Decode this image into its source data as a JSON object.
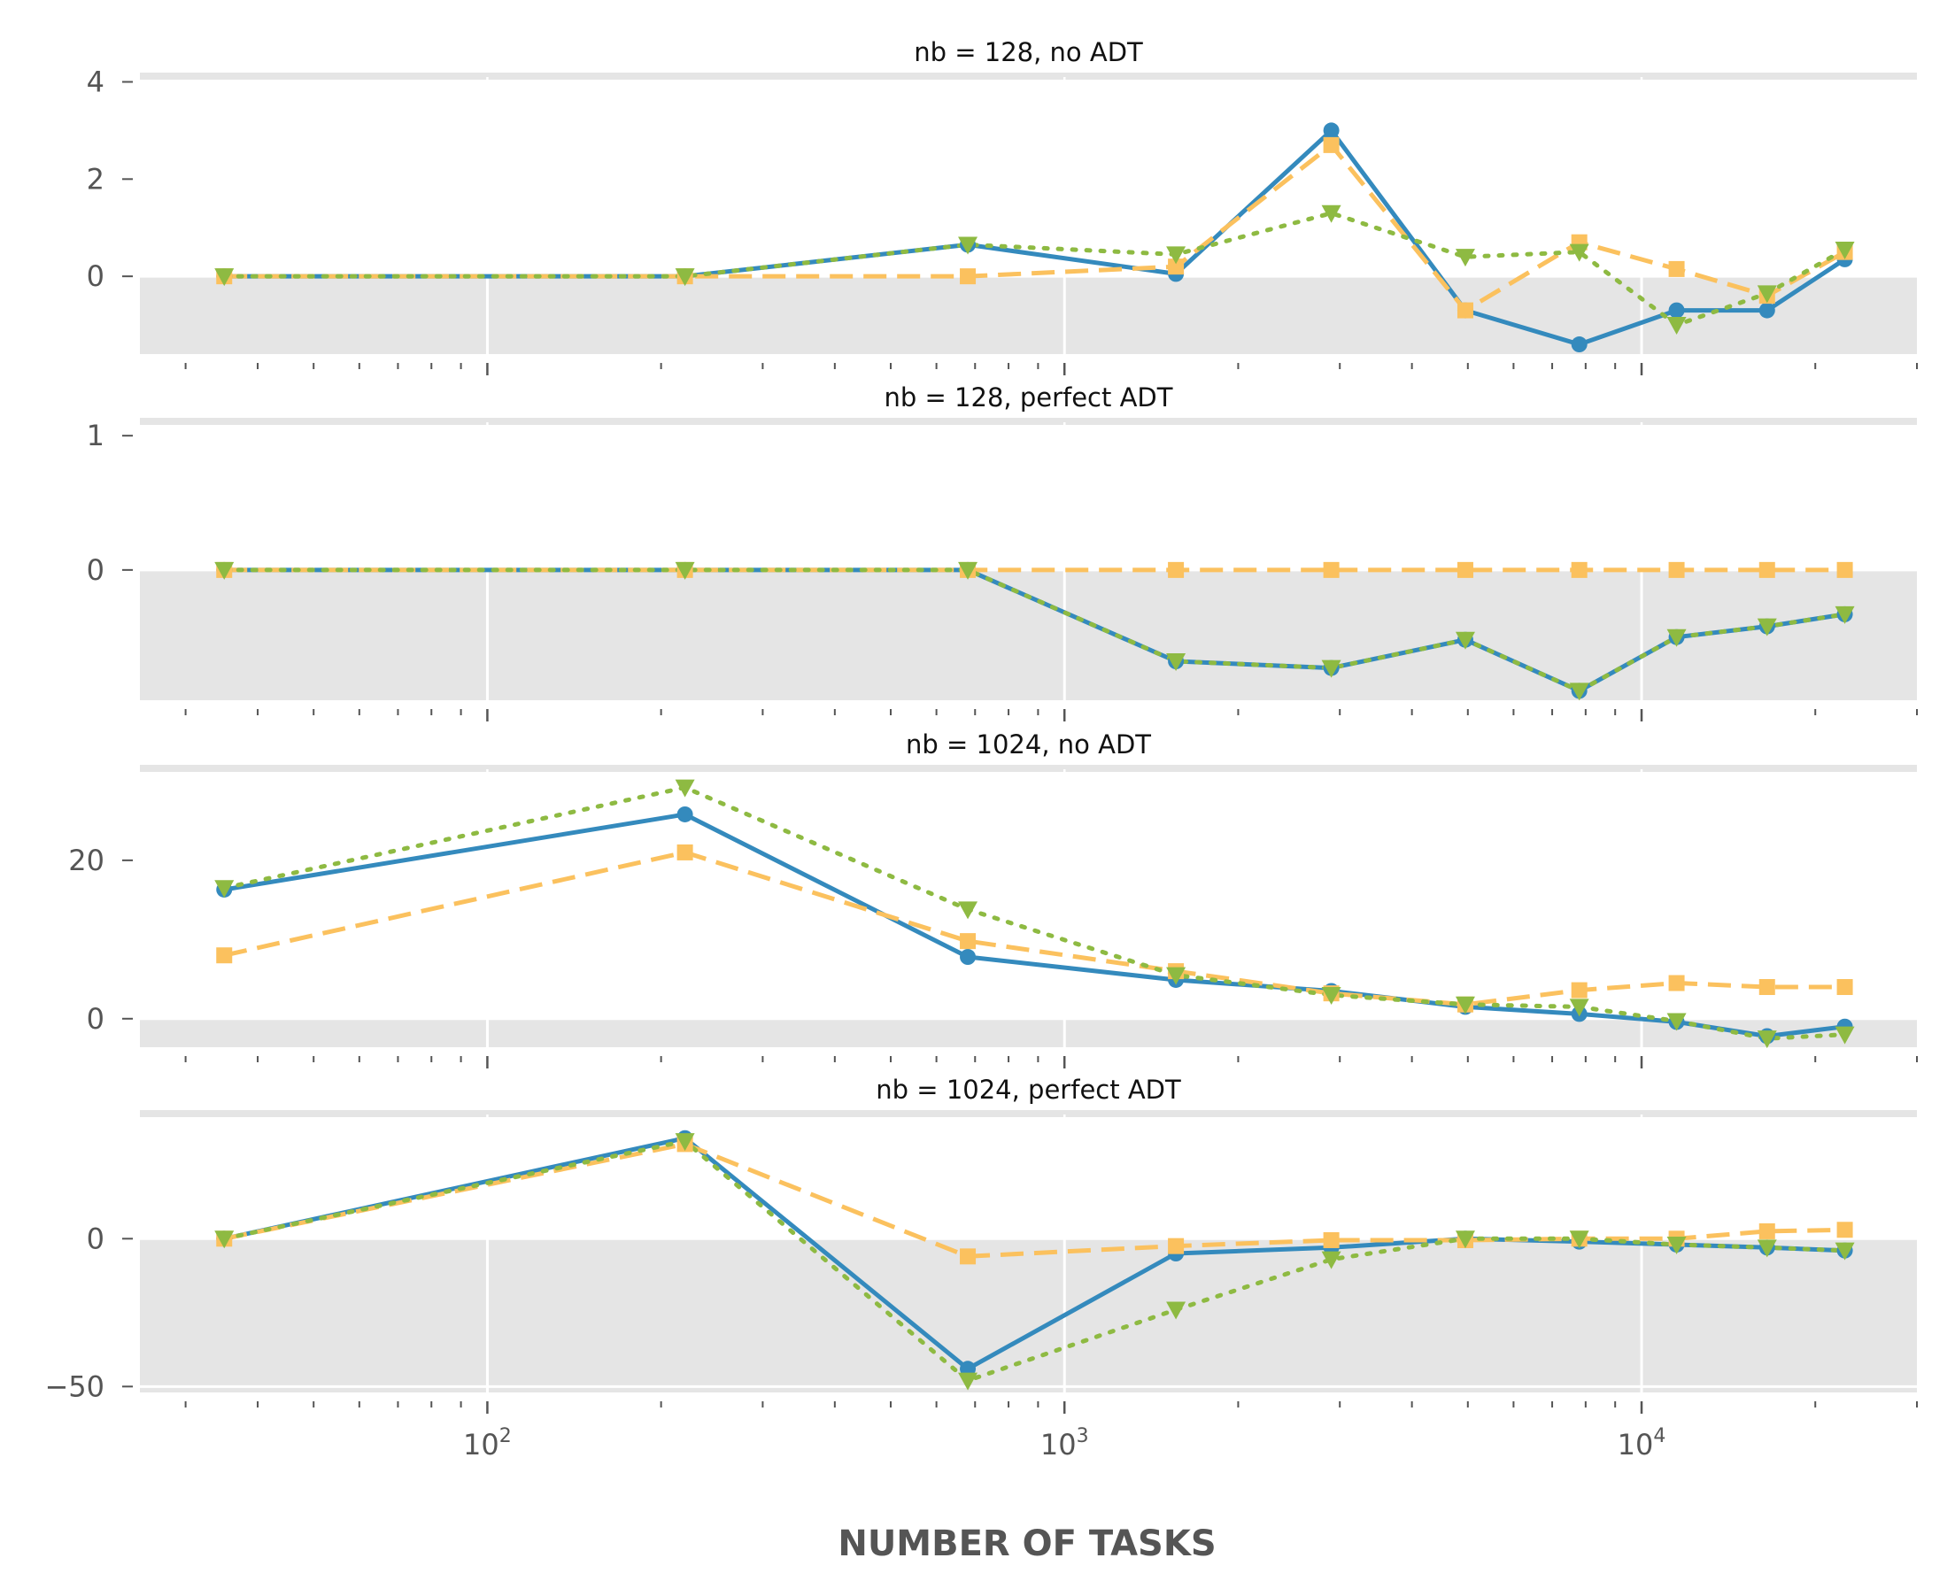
{
  "chart_data": {
    "type": "line",
    "xlabel": "NUMBER OF TASKS",
    "xscale": "log",
    "xlim": [
      25,
      30000
    ],
    "x_ticks": [
      100,
      1000,
      10000
    ],
    "x_tick_labels": [
      {
        "base": "10",
        "exp": "2"
      },
      {
        "base": "10",
        "exp": "3"
      },
      {
        "base": "10",
        "exp": "4"
      }
    ],
    "x": [
      35,
      220,
      680,
      1560,
      2900,
      4950,
      7800,
      11500,
      16500,
      22500
    ],
    "grid": true,
    "negative_region_shaded": true,
    "style": {
      "colors": {
        "blue": "#348ABD",
        "orange": "#FBC15E",
        "green": "#8EBA42",
        "grid": "#E5E5E5",
        "text": "#555555"
      }
    },
    "panels": [
      {
        "title": "nb = 128, no ADT",
        "ylim": [
          -1.6,
          4.1
        ],
        "y_ticks": [
          0,
          2,
          4
        ],
        "y_tick_labels": [
          "0",
          "2",
          "4"
        ],
        "series": [
          {
            "style": "solid",
            "marker": "circle",
            "color": "#348ABD",
            "values": [
              0,
              0,
              0.65,
              0.05,
              3.0,
              -0.7,
              -1.4,
              -0.7,
              -0.7,
              0.35
            ]
          },
          {
            "style": "dashed",
            "marker": "square",
            "color": "#FBC15E",
            "values": [
              0,
              0,
              0,
              0.2,
              2.7,
              -0.7,
              0.7,
              0.15,
              -0.4,
              0.5
            ]
          },
          {
            "style": "dotted",
            "marker": "triangle-down",
            "color": "#8EBA42",
            "values": [
              0,
              0,
              0.65,
              0.45,
              1.3,
              0.4,
              0.5,
              -1.0,
              -0.35,
              0.55
            ]
          }
        ]
      },
      {
        "title": "nb = 128, perfect ADT",
        "ylim": [
          -0.97,
          1.1
        ],
        "y_ticks": [
          0,
          1
        ],
        "y_tick_labels": [
          "0",
          "1"
        ],
        "series": [
          {
            "style": "solid",
            "marker": "circle",
            "color": "#348ABD",
            "values": [
              0,
              0,
              0,
              -0.68,
              -0.73,
              -0.52,
              -0.9,
              -0.5,
              -0.42,
              -0.33
            ]
          },
          {
            "style": "dashed",
            "marker": "square",
            "color": "#FBC15E",
            "values": [
              0,
              0,
              0,
              0,
              0,
              0,
              0,
              0,
              0,
              0
            ]
          },
          {
            "style": "dotted",
            "marker": "triangle-down",
            "color": "#8EBA42",
            "values": [
              0,
              0,
              0,
              -0.68,
              -0.73,
              -0.52,
              -0.9,
              -0.5,
              -0.42,
              -0.33
            ]
          }
        ]
      },
      {
        "title": "nb = 1024, no ADT",
        "ylim": [
          -3.6,
          31.5
        ],
        "y_ticks": [
          0,
          20
        ],
        "y_tick_labels": [
          "0",
          "20"
        ],
        "series": [
          {
            "style": "solid",
            "marker": "circle",
            "color": "#348ABD",
            "values": [
              16.3,
              25.8,
              7.8,
              4.9,
              3.5,
              1.5,
              0.6,
              -0.4,
              -2.2,
              -1.0
            ]
          },
          {
            "style": "dashed",
            "marker": "square",
            "color": "#FBC15E",
            "values": [
              8.0,
              21.0,
              9.8,
              6.0,
              3.2,
              1.8,
              3.6,
              4.5,
              4.0,
              4.0
            ]
          },
          {
            "style": "dotted",
            "marker": "triangle-down",
            "color": "#8EBA42",
            "values": [
              16.5,
              29.2,
              13.8,
              5.5,
              3.0,
              1.8,
              1.5,
              -0.3,
              -2.5,
              -2.0
            ]
          }
        ]
      },
      {
        "title": "nb = 1024, perfect ADT",
        "ylim": [
          -52,
          42
        ],
        "y_ticks": [
          -50,
          0
        ],
        "y_tick_labels": [
          "−50",
          "0"
        ],
        "series": [
          {
            "style": "solid",
            "marker": "circle",
            "color": "#348ABD",
            "values": [
              0,
              34,
              -44,
              -5,
              -3,
              0,
              -1,
              -2,
              -3,
              -4
            ]
          },
          {
            "style": "dashed",
            "marker": "square",
            "color": "#FBC15E",
            "values": [
              0,
              32,
              -6,
              -2.5,
              -0.5,
              -0.5,
              0,
              0,
              2.5,
              3
            ]
          },
          {
            "style": "dotted",
            "marker": "triangle-down",
            "color": "#8EBA42",
            "values": [
              0,
              33,
              -48,
              -24,
              -7,
              0,
              0,
              -2,
              -3,
              -4
            ]
          }
        ]
      }
    ]
  }
}
